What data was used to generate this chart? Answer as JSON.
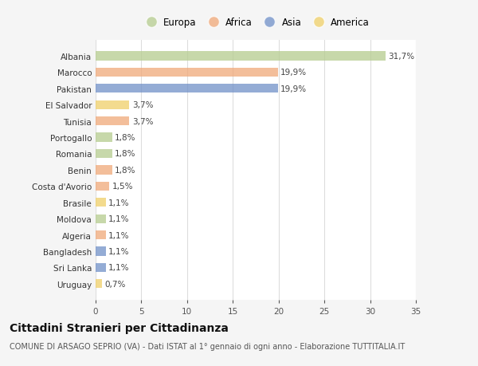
{
  "countries": [
    "Albania",
    "Marocco",
    "Pakistan",
    "El Salvador",
    "Tunisia",
    "Portogallo",
    "Romania",
    "Benin",
    "Costa d'Avorio",
    "Brasile",
    "Moldova",
    "Algeria",
    "Bangladesh",
    "Sri Lanka",
    "Uruguay"
  ],
  "values": [
    31.7,
    19.9,
    19.9,
    3.7,
    3.7,
    1.8,
    1.8,
    1.8,
    1.5,
    1.1,
    1.1,
    1.1,
    1.1,
    1.1,
    0.7
  ],
  "labels": [
    "31,7%",
    "19,9%",
    "19,9%",
    "3,7%",
    "3,7%",
    "1,8%",
    "1,8%",
    "1,8%",
    "1,5%",
    "1,1%",
    "1,1%",
    "1,1%",
    "1,1%",
    "1,1%",
    "0,7%"
  ],
  "continents": [
    "Europa",
    "Africa",
    "Asia",
    "America",
    "Africa",
    "Europa",
    "Europa",
    "Africa",
    "Africa",
    "America",
    "Europa",
    "Africa",
    "Asia",
    "Asia",
    "America"
  ],
  "continent_colors": {
    "Europa": "#b5cc8e",
    "Africa": "#f0a878",
    "Asia": "#7090c8",
    "America": "#f0d068"
  },
  "legend_order": [
    "Europa",
    "Africa",
    "Asia",
    "America"
  ],
  "title": "Cittadini Stranieri per Cittadinanza",
  "subtitle": "COMUNE DI ARSAGO SEPRIO (VA) - Dati ISTAT al 1° gennaio di ogni anno - Elaborazione TUTTITALIA.IT",
  "xlim": [
    0,
    35
  ],
  "xticks": [
    0,
    5,
    10,
    15,
    20,
    25,
    30,
    35
  ],
  "background_color": "#f5f5f5",
  "plot_bg_color": "#ffffff",
  "grid_color": "#dddddd",
  "bar_height": 0.55,
  "bar_alpha": 0.75,
  "title_fontsize": 10,
  "subtitle_fontsize": 7,
  "label_fontsize": 7.5,
  "tick_fontsize": 7.5,
  "legend_fontsize": 8.5
}
